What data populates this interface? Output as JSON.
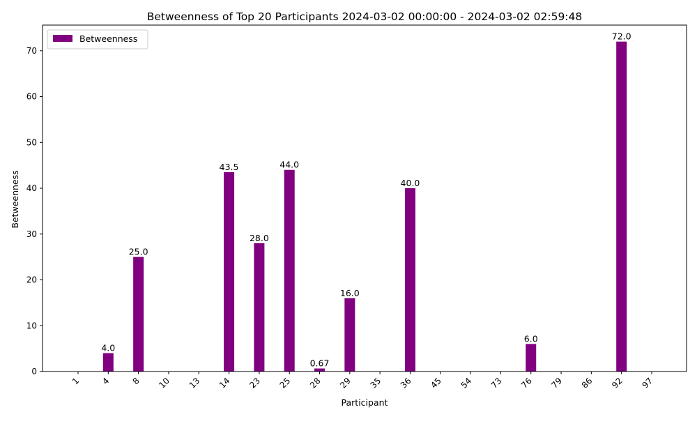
{
  "chart_data": {
    "type": "bar",
    "title": "Betweenness of Top 20 Participants 2024-03-02 00:00:00 - 2024-03-02 02:59:48",
    "xlabel": "Participant",
    "ylabel": "Betweenness",
    "categories": [
      "1",
      "4",
      "8",
      "10",
      "13",
      "14",
      "23",
      "25",
      "28",
      "29",
      "35",
      "36",
      "45",
      "54",
      "73",
      "76",
      "79",
      "86",
      "92",
      "97"
    ],
    "series": [
      {
        "name": "Betweenness",
        "color": "#800080",
        "values": [
          0,
          4.0,
          25.0,
          0,
          0,
          43.5,
          28.0,
          44.0,
          0.67,
          16.0,
          0,
          40.0,
          0,
          0,
          0,
          6.0,
          0,
          0,
          72.0,
          0
        ],
        "data_labels": [
          "",
          "4.0",
          "25.0",
          "",
          "",
          "43.5",
          "28.0",
          "44.0",
          "0.67",
          "16.0",
          "",
          "40.0",
          "",
          "",
          "",
          "6.0",
          "",
          "",
          "72.0",
          ""
        ]
      }
    ],
    "ylim": [
      0,
      75.6
    ],
    "yticks": [
      0,
      10,
      20,
      30,
      40,
      50,
      60,
      70
    ],
    "grid": false,
    "legend_position": "top-left",
    "x_tick_rotation": "45 degrees"
  }
}
